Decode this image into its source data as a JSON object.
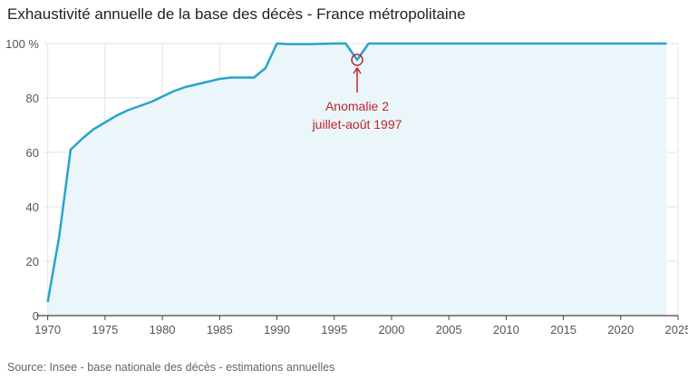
{
  "chart_data": {
    "type": "area",
    "title": "Exhaustivité annuelle de la base des décès - France métropolitaine",
    "source": "Source: Insee - base nationale des décès - estimations annuelles",
    "xlabel": "",
    "ylabel": "",
    "xlim": [
      1969,
      2025
    ],
    "ylim": [
      0,
      100
    ],
    "x_ticks": [
      1970,
      1975,
      1980,
      1985,
      1990,
      1995,
      2000,
      2005,
      2010,
      2015,
      2020,
      2025
    ],
    "y_ticks": [
      {
        "value": 0,
        "label": "0"
      },
      {
        "value": 20,
        "label": "20"
      },
      {
        "value": 40,
        "label": "40"
      },
      {
        "value": 60,
        "label": "60"
      },
      {
        "value": 80,
        "label": "80"
      },
      {
        "value": 100,
        "label": "100 %"
      }
    ],
    "grid": true,
    "line_color": "#29a3cc",
    "fill_color": "#eaf6f9",
    "annotation_color": "#c0262d",
    "series": [
      {
        "x": [
          1970,
          1971,
          1972,
          1973,
          1974,
          1975,
          1976,
          1977,
          1978,
          1979,
          1980,
          1981,
          1982,
          1983,
          1984,
          1985,
          1986,
          1987,
          1988,
          1989,
          1990,
          1991,
          1992,
          1993,
          1994,
          1995,
          1996,
          1997,
          1998,
          1999,
          2000,
          2001,
          2002,
          2003,
          2004,
          2005,
          2006,
          2007,
          2008,
          2009,
          2010,
          2011,
          2012,
          2013,
          2014,
          2015,
          2016,
          2017,
          2018,
          2019,
          2020,
          2021,
          2022,
          2023,
          2024
        ],
        "values": [
          5,
          29,
          61,
          65,
          68.5,
          71,
          73.5,
          75.5,
          77,
          78.5,
          80.5,
          82.5,
          84,
          85,
          86,
          87,
          87.5,
          87.5,
          87.5,
          91,
          100,
          99.8,
          99.8,
          99.8,
          99.9,
          100,
          100,
          94,
          100,
          100,
          100,
          100,
          100,
          100,
          100,
          100,
          100,
          100,
          100,
          100,
          100,
          100,
          100,
          100,
          100,
          100,
          100,
          100,
          100,
          100,
          100,
          100,
          100,
          100,
          100
        ]
      }
    ],
    "annotation": {
      "x": 1997,
      "y": 94,
      "lines": [
        "Anomalie 2",
        "juillet-août 1997"
      ]
    }
  }
}
